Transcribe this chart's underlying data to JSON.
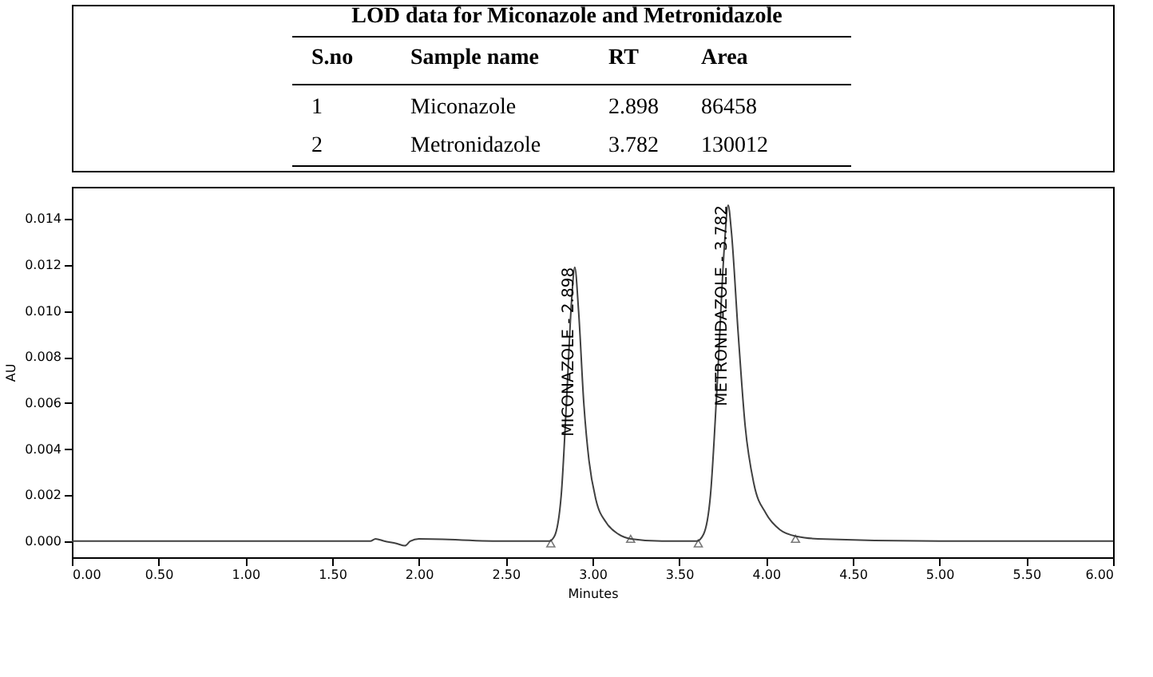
{
  "chart_data": {
    "type": "line",
    "title": "LOD data for Miconazole and Metronidazole",
    "annotations": [
      {
        "text": "S.no"
      },
      {
        "text": "Sample name"
      },
      {
        "text": "RT"
      },
      {
        "text": "Area"
      },
      {
        "text": "1"
      },
      {
        "text": "Miconazole"
      },
      {
        "text": "2.898"
      },
      {
        "text": "86458"
      },
      {
        "text": "2"
      },
      {
        "text": "Metronidazole"
      },
      {
        "text": "3.782"
      },
      {
        "text": "130012"
      },
      {
        "text": "MICONAZOLE - 2.898",
        "x": 2.898,
        "y": 0.0119
      },
      {
        "text": "METRONIDAZOLE - 3.782",
        "x": 3.782,
        "y": 0.0146
      }
    ],
    "grid": false,
    "xlabel": "Minutes",
    "ylabel": "AU",
    "series": [
      {
        "type": "line",
        "color": "#404040",
        "x": [
          0,
          0.5,
          1.0,
          1.5,
          1.72,
          1.75,
          1.8,
          1.87,
          1.92,
          1.95,
          2.0,
          2.5,
          2.75,
          2.78,
          2.82,
          2.85,
          2.88,
          2.898,
          2.92,
          2.95,
          2.98,
          3.02,
          3.08,
          3.15,
          3.22,
          3.4,
          3.6,
          3.64,
          3.68,
          3.72,
          3.76,
          3.782,
          3.8,
          3.84,
          3.88,
          3.93,
          4.0,
          4.08,
          4.18,
          4.3,
          5.0,
          6.0
        ],
        "values": [
          0,
          0,
          0,
          0,
          0,
          0.0001,
          0,
          -0.0001,
          -0.0002,
          0,
          0.0001,
          0,
          0,
          0.0002,
          0.002,
          0.006,
          0.0105,
          0.0119,
          0.01,
          0.006,
          0.0035,
          0.0018,
          0.0008,
          0.0003,
          0.0001,
          0,
          0,
          0.0003,
          0.002,
          0.007,
          0.0128,
          0.0146,
          0.0135,
          0.009,
          0.005,
          0.0025,
          0.0012,
          0.0005,
          0.0002,
          0.0001,
          0,
          0
        ]
      },
      {
        "type": "scatter",
        "marker": "triangle",
        "color": "#404040",
        "x": [
          2.76,
          3.22,
          3.61,
          4.17
        ],
        "values": [
          -0.0001,
          0.0001,
          -0.0001,
          0.0001
        ]
      }
    ],
    "xlim": [
      0,
      6
    ],
    "ylim": [
      -0.0007,
      0.0154
    ],
    "xticks": [
      {
        "value": 0,
        "label": "0.00"
      },
      {
        "value": 0.5,
        "label": "0.50"
      },
      {
        "value": 1,
        "label": "1.00"
      },
      {
        "value": 1.5,
        "label": "1.50"
      },
      {
        "value": 2,
        "label": "2.00"
      },
      {
        "value": 2.5,
        "label": "2.50"
      },
      {
        "value": 3,
        "label": "3.00"
      },
      {
        "value": 3.5,
        "label": "3.50"
      },
      {
        "value": 4,
        "label": "4.00"
      },
      {
        "value": 4.5,
        "label": "4.50"
      },
      {
        "value": 5,
        "label": "5.00"
      },
      {
        "value": 5.5,
        "label": "5.50"
      },
      {
        "value": 6,
        "label": "6.00"
      }
    ],
    "yticks": [
      {
        "value": 0,
        "label": "0.000"
      },
      {
        "value": 0.002,
        "label": "0.002"
      },
      {
        "value": 0.004,
        "label": "0.004"
      },
      {
        "value": 0.006,
        "label": "0.006"
      },
      {
        "value": 0.008,
        "label": "0.008"
      },
      {
        "value": 0.01,
        "label": "0.010"
      },
      {
        "value": 0.012,
        "label": "0.012"
      },
      {
        "value": 0.014,
        "label": "0.014"
      }
    ]
  }
}
